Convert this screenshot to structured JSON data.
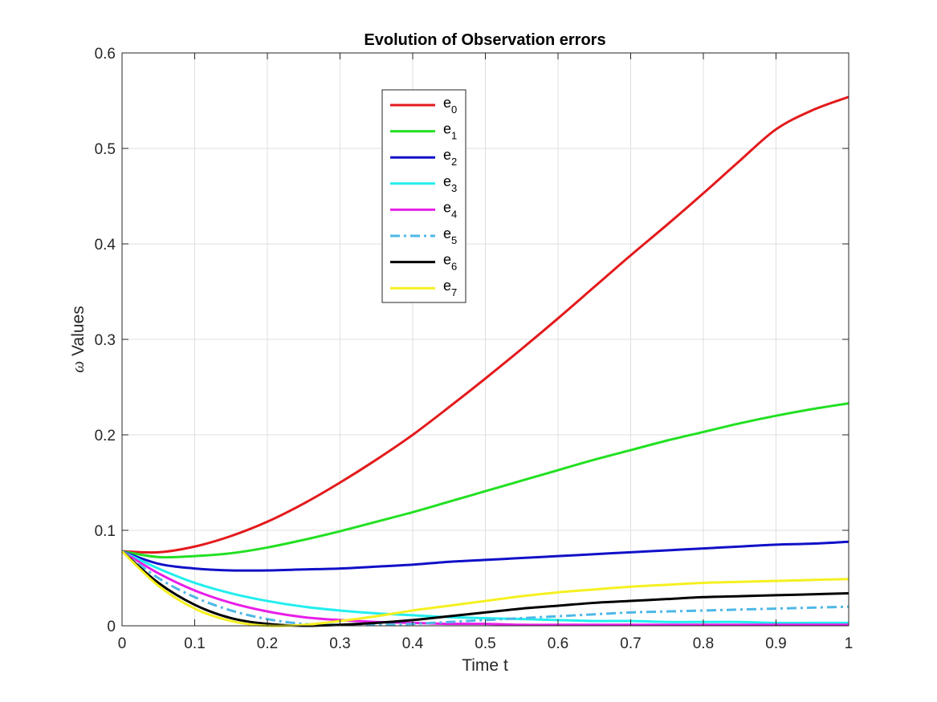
{
  "chart_data": {
    "type": "line",
    "title": "Evolution of Observation errors",
    "xlabel": "Time t",
    "ylabel_symbol": "ω",
    "ylabel_text": "Values",
    "xlim": [
      0,
      1
    ],
    "ylim": [
      0,
      0.6
    ],
    "xticks": [
      0,
      0.1,
      0.2,
      0.3,
      0.4,
      0.5,
      0.6,
      0.7,
      0.8,
      0.9,
      1
    ],
    "xtick_labels": [
      "0",
      "0.1",
      "0.2",
      "0.3",
      "0.4",
      "0.5",
      "0.6",
      "0.7",
      "0.8",
      "0.9",
      "1"
    ],
    "yticks": [
      0,
      0.1,
      0.2,
      0.3,
      0.4,
      0.5,
      0.6
    ],
    "ytick_labels": [
      "0",
      "0.1",
      "0.2",
      "0.3",
      "0.4",
      "0.5",
      "0.6"
    ],
    "grid": true,
    "legend_position": "upper-center",
    "x": [
      0,
      0.05,
      0.1,
      0.15,
      0.2,
      0.25,
      0.3,
      0.35,
      0.4,
      0.45,
      0.5,
      0.55,
      0.6,
      0.65,
      0.7,
      0.75,
      0.8,
      0.85,
      0.9,
      0.95,
      1.0
    ],
    "series": [
      {
        "name": "e",
        "sub": "0",
        "color": "#e31a1c",
        "dash": "solid",
        "values": [
          0.078,
          0.077,
          0.083,
          0.094,
          0.109,
          0.128,
          0.15,
          0.174,
          0.2,
          0.229,
          0.259,
          0.29,
          0.322,
          0.355,
          0.388,
          0.42,
          0.453,
          0.487,
          0.52,
          0.54,
          0.554
        ]
      },
      {
        "name": "e",
        "sub": "1",
        "color": "#22e022",
        "dash": "solid",
        "values": [
          0.078,
          0.072,
          0.073,
          0.076,
          0.082,
          0.09,
          0.099,
          0.109,
          0.119,
          0.13,
          0.141,
          0.152,
          0.163,
          0.174,
          0.184,
          0.194,
          0.203,
          0.212,
          0.22,
          0.227,
          0.233
        ]
      },
      {
        "name": "e",
        "sub": "2",
        "color": "#1010c8",
        "dash": "solid",
        "values": [
          0.078,
          0.065,
          0.06,
          0.058,
          0.058,
          0.059,
          0.06,
          0.062,
          0.064,
          0.067,
          0.069,
          0.071,
          0.073,
          0.075,
          0.077,
          0.079,
          0.081,
          0.083,
          0.085,
          0.086,
          0.088
        ]
      },
      {
        "name": "e",
        "sub": "3",
        "color": "#22eeee",
        "dash": "solid",
        "values": [
          0.078,
          0.06,
          0.045,
          0.034,
          0.026,
          0.02,
          0.016,
          0.013,
          0.011,
          0.009,
          0.008,
          0.007,
          0.006,
          0.005,
          0.005,
          0.004,
          0.004,
          0.004,
          0.003,
          0.003,
          0.003
        ]
      },
      {
        "name": "e",
        "sub": "4",
        "color": "#e81ee8",
        "dash": "solid",
        "values": [
          0.078,
          0.055,
          0.037,
          0.024,
          0.015,
          0.009,
          0.006,
          0.004,
          0.003,
          0.002,
          0.002,
          0.001,
          0.001,
          0.001,
          0.001,
          0.001,
          0.001,
          0.001,
          0.001,
          0.001,
          0.001
        ]
      },
      {
        "name": "e",
        "sub": "5",
        "color": "#4db8e6",
        "dash": "dashdot",
        "values": [
          0.078,
          0.05,
          0.03,
          0.016,
          0.007,
          0.002,
          0.001,
          0.001,
          0.002,
          0.004,
          0.006,
          0.008,
          0.01,
          0.012,
          0.014,
          0.015,
          0.016,
          0.017,
          0.018,
          0.019,
          0.02
        ]
      },
      {
        "name": "e",
        "sub": "6",
        "color": "#000000",
        "dash": "solid",
        "values": [
          0.078,
          0.045,
          0.022,
          0.008,
          0.002,
          0.0,
          0.001,
          0.003,
          0.006,
          0.01,
          0.014,
          0.018,
          0.021,
          0.024,
          0.026,
          0.028,
          0.03,
          0.031,
          0.032,
          0.033,
          0.034
        ]
      },
      {
        "name": "e",
        "sub": "7",
        "color": "#f5f020",
        "dash": "solid",
        "values": [
          0.078,
          0.042,
          0.018,
          0.005,
          0.0,
          0.001,
          0.005,
          0.01,
          0.016,
          0.021,
          0.026,
          0.031,
          0.035,
          0.038,
          0.041,
          0.043,
          0.045,
          0.046,
          0.047,
          0.048,
          0.049
        ]
      }
    ]
  }
}
